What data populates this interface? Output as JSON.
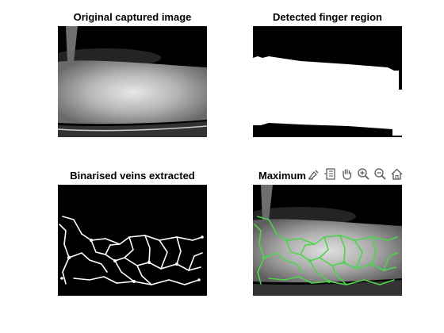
{
  "figure": {
    "panels": [
      {
        "title": "Original captured image"
      },
      {
        "title": "Detected finger region"
      },
      {
        "title": "Binarised veins extracted"
      },
      {
        "title": "Maximum"
      }
    ]
  },
  "toolbar": {
    "buttons": [
      {
        "icon": "brush-icon"
      },
      {
        "icon": "data-tips-icon"
      },
      {
        "icon": "pan-hand-icon"
      },
      {
        "icon": "zoom-in-icon"
      },
      {
        "icon": "zoom-out-icon"
      },
      {
        "icon": "home-icon"
      }
    ]
  },
  "colors": {
    "background": "#ffffff",
    "image_background": "#000000",
    "vein_overlay": "#4fd34f",
    "toolbar_icon": "#555555"
  }
}
